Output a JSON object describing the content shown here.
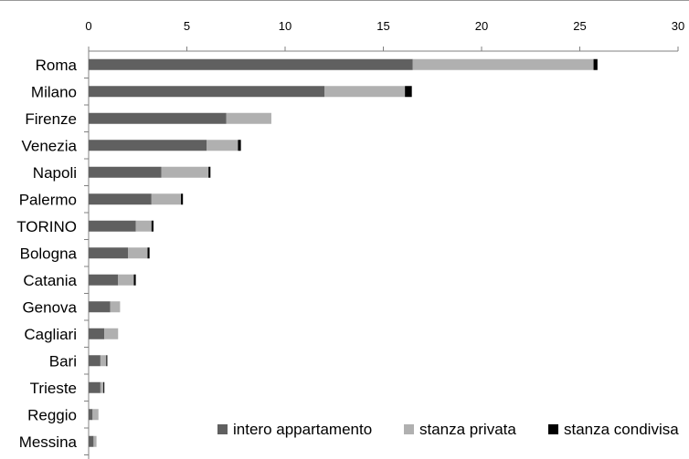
{
  "chart_data": {
    "type": "bar",
    "orientation": "horizontal",
    "stacked": true,
    "categories": [
      "Roma",
      "Milano",
      "Firenze",
      "Venezia",
      "Napoli",
      "Palermo",
      "TORINO",
      "Bologna",
      "Catania",
      "Genova",
      "Cagliari",
      "Bari",
      "Trieste",
      "Reggio",
      "Messina"
    ],
    "series": [
      {
        "name": "intero appartamento",
        "color": "#606060",
        "values": [
          16.5,
          12.0,
          7.0,
          6.0,
          3.7,
          3.2,
          2.4,
          2.0,
          1.5,
          1.1,
          0.8,
          0.6,
          0.6,
          0.2,
          0.25
        ]
      },
      {
        "name": "stanza privata",
        "color": "#b0b0b0",
        "values": [
          9.2,
          4.1,
          2.3,
          1.6,
          2.4,
          1.5,
          0.8,
          1.0,
          0.8,
          0.5,
          0.7,
          0.3,
          0.15,
          0.3,
          0.15
        ]
      },
      {
        "name": "stanza condivisa",
        "color": "#000000",
        "values": [
          0.2,
          0.35,
          0.0,
          0.15,
          0.1,
          0.1,
          0.1,
          0.1,
          0.1,
          0.0,
          0.0,
          0.05,
          0.05,
          0.0,
          0.0
        ]
      }
    ],
    "xlim": [
      0,
      30
    ],
    "x_ticks": [
      "0",
      "5",
      "10",
      "15",
      "20",
      "25",
      "30"
    ],
    "title": "",
    "xlabel": "",
    "ylabel": "",
    "axis_position": "top",
    "grid": false,
    "legend_position": "bottom-right"
  }
}
